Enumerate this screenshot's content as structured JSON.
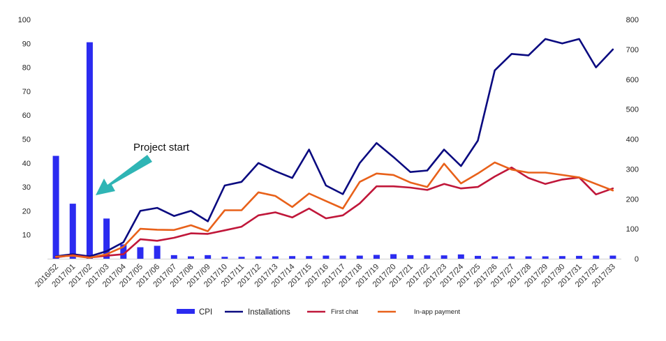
{
  "chart_data": {
    "type": "bar+line",
    "categories": [
      "2016/52",
      "2017/01",
      "2017/02",
      "2017/03",
      "2017/04",
      "2017/05",
      "2017/06",
      "2017/07",
      "2017/08",
      "2017/09",
      "2017/10",
      "2017/11",
      "2017/12",
      "2017/13",
      "2017/14",
      "2017/15",
      "2017/16",
      "2017/17",
      "2017/18",
      "2017/19",
      "2017/20",
      "2017/21",
      "2017/22",
      "2017/23",
      "2017/24",
      "2017/25",
      "2017/26",
      "2017/27",
      "2017/28",
      "2017/29",
      "2017/30",
      "2017/31",
      "2017/32",
      "2017/33"
    ],
    "left_axis": {
      "min": 0,
      "max": 100,
      "ticks": [
        10,
        20,
        30,
        40,
        50,
        60,
        70,
        80,
        90,
        100
      ]
    },
    "right_axis": {
      "min": 0,
      "max": 800,
      "ticks": [
        0,
        100,
        200,
        300,
        400,
        500,
        600,
        700,
        800
      ]
    },
    "series": [
      {
        "name": "CPI",
        "kind": "bar",
        "axis": "left",
        "color": "#2b2bf0",
        "values": [
          43,
          23,
          90.5,
          16.8,
          6,
          4.8,
          5.4,
          1.5,
          1,
          1.5,
          0.8,
          0.8,
          1,
          1,
          1.1,
          1.1,
          1.3,
          1.3,
          1.3,
          1.6,
          1.9,
          1.5,
          1.4,
          1.4,
          1.8,
          1.2,
          1,
          1,
          1,
          1,
          1.1,
          1.2,
          1.3,
          1.3
        ]
      },
      {
        "name": "Installations",
        "kind": "line",
        "axis": "right",
        "color": "#0a0a80",
        "values": [
          8,
          15,
          8,
          25,
          55,
          160,
          170,
          143,
          160,
          125,
          245,
          257,
          320,
          293,
          270,
          365,
          245,
          216,
          320,
          387,
          340,
          290,
          295,
          365,
          310,
          395,
          630,
          685,
          680,
          735,
          720,
          735,
          640,
          700
        ]
      },
      {
        "name": "First chat",
        "kind": "line",
        "axis": "right",
        "color": "#c0173a",
        "values": [
          5,
          12,
          4,
          10,
          15,
          65,
          60,
          70,
          85,
          83,
          95,
          107,
          145,
          155,
          138,
          168,
          135,
          145,
          185,
          242,
          242,
          238,
          230,
          250,
          235,
          240,
          275,
          305,
          270,
          250,
          265,
          272,
          215,
          235
        ]
      },
      {
        "name": "In-app payment",
        "kind": "line",
        "axis": "right",
        "color": "#e8611a",
        "values": [
          7,
          10,
          3,
          15,
          40,
          100,
          97,
          96,
          112,
          92,
          162,
          162,
          222,
          210,
          173,
          218,
          193,
          168,
          257,
          285,
          280,
          255,
          240,
          318,
          252,
          285,
          322,
          298,
          288,
          288,
          280,
          272,
          250,
          228
        ]
      }
    ],
    "annotation": {
      "text": "Project start",
      "arrow_color": "#2fb5b5"
    },
    "legend_position": "bottom"
  }
}
